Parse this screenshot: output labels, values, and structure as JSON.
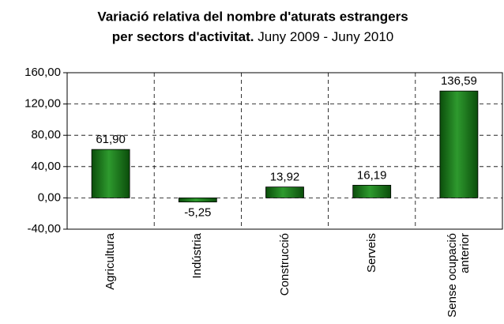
{
  "chart_data": {
    "type": "bar",
    "title": "Variació relativa del nombre d'aturats estrangers",
    "title_line2": "per sectors d'activitat.",
    "subtitle": "Juny 2009 - Juny 2010",
    "categories": [
      "Agricultura",
      "Indústria",
      "Construcció",
      "Serveis",
      "Sense ocupació anterior"
    ],
    "values": [
      61.9,
      -5.25,
      13.92,
      16.19,
      136.59
    ],
    "value_labels": [
      "61,90",
      "-5,25",
      "13,92",
      "16,19",
      "136,59"
    ],
    "color": "#1a7a1a",
    "ylim": [
      -40,
      160
    ],
    "yticks": [
      {
        "value": -40,
        "label": "-40,00"
      },
      {
        "value": 0,
        "label": "0,00"
      },
      {
        "value": 40,
        "label": "40,00"
      },
      {
        "value": 80,
        "label": "80,00"
      },
      {
        "value": 120,
        "label": "120,00"
      },
      {
        "value": 160,
        "label": "160,00"
      }
    ],
    "grid": true
  }
}
